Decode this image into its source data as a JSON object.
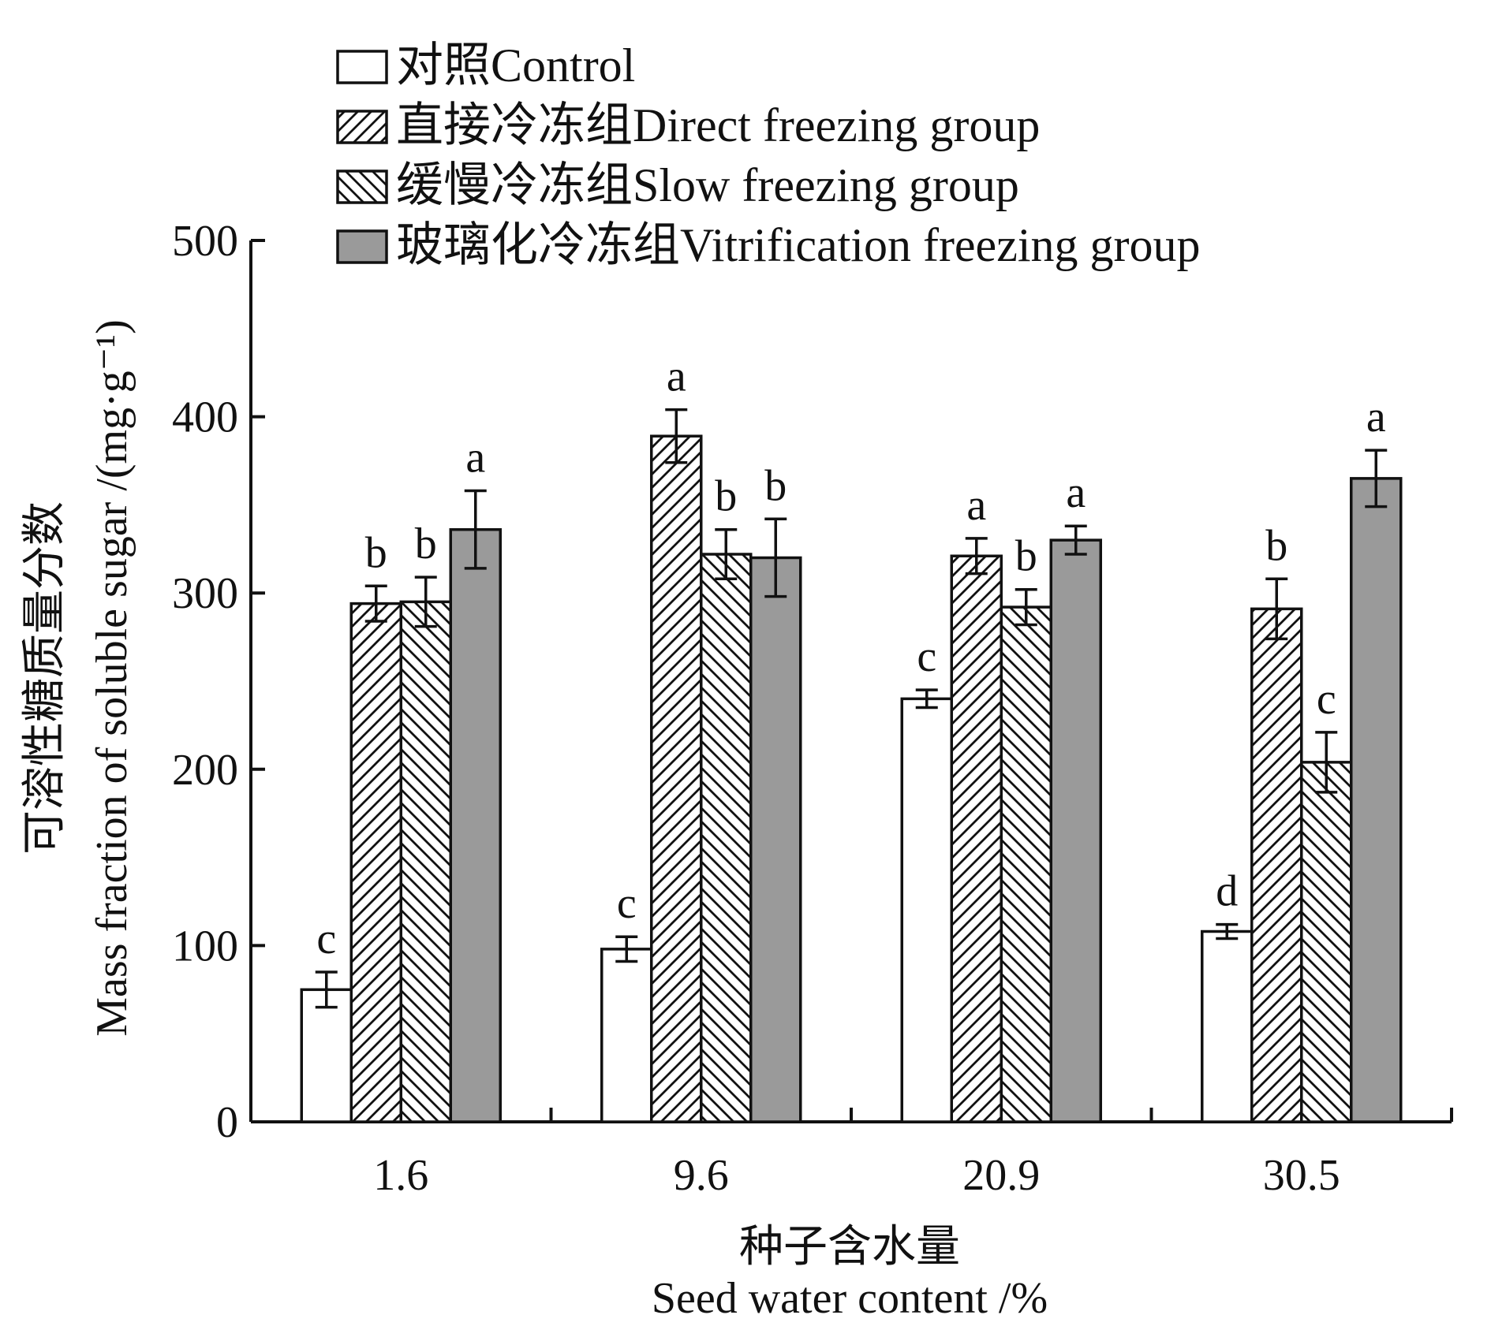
{
  "chart_data": {
    "type": "bar",
    "title": "",
    "xlabel_cn": "种子含水量",
    "xlabel_en": "Seed water content /%",
    "ylabel_cn": "可溶性糖质量分数",
    "ylabel_en": "Mass fraction of soluble sugar /(mg·g⁻¹)",
    "ylim": [
      0,
      500
    ],
    "yticks": [
      "0",
      "100",
      "200",
      "300",
      "400",
      "500"
    ],
    "categories": [
      "1.6",
      "9.6",
      "20.9",
      "30.5"
    ],
    "legend_position": "top",
    "series": [
      {
        "name": "对照Control",
        "fill": "none",
        "values": [
          75,
          98,
          240,
          108
        ],
        "errors": [
          10,
          7,
          5,
          4
        ],
        "sig": [
          "c",
          "c",
          "c",
          "d"
        ]
      },
      {
        "name": "直接冷冻组Direct freezing group",
        "fill": "hatch-forward",
        "values": [
          294,
          389,
          321,
          291
        ],
        "errors": [
          10,
          15,
          10,
          17
        ],
        "sig": [
          "b",
          "a",
          "a",
          "b"
        ]
      },
      {
        "name": "缓慢冷冻组Slow freezing group",
        "fill": "hatch-backward",
        "values": [
          295,
          322,
          292,
          204
        ],
        "errors": [
          14,
          14,
          10,
          17
        ],
        "sig": [
          "b",
          "b",
          "b",
          "c"
        ]
      },
      {
        "name": "玻璃化冷冻组Vitrification freezing group",
        "fill": "gray",
        "values": [
          336,
          320,
          330,
          365
        ],
        "errors": [
          22,
          22,
          8,
          16
        ],
        "sig": [
          "a",
          "b",
          "a",
          "a"
        ]
      }
    ],
    "colors": {
      "axis": "#111111",
      "gray_fill": "#9a9a9a",
      "bar_stroke": "#111111"
    }
  }
}
